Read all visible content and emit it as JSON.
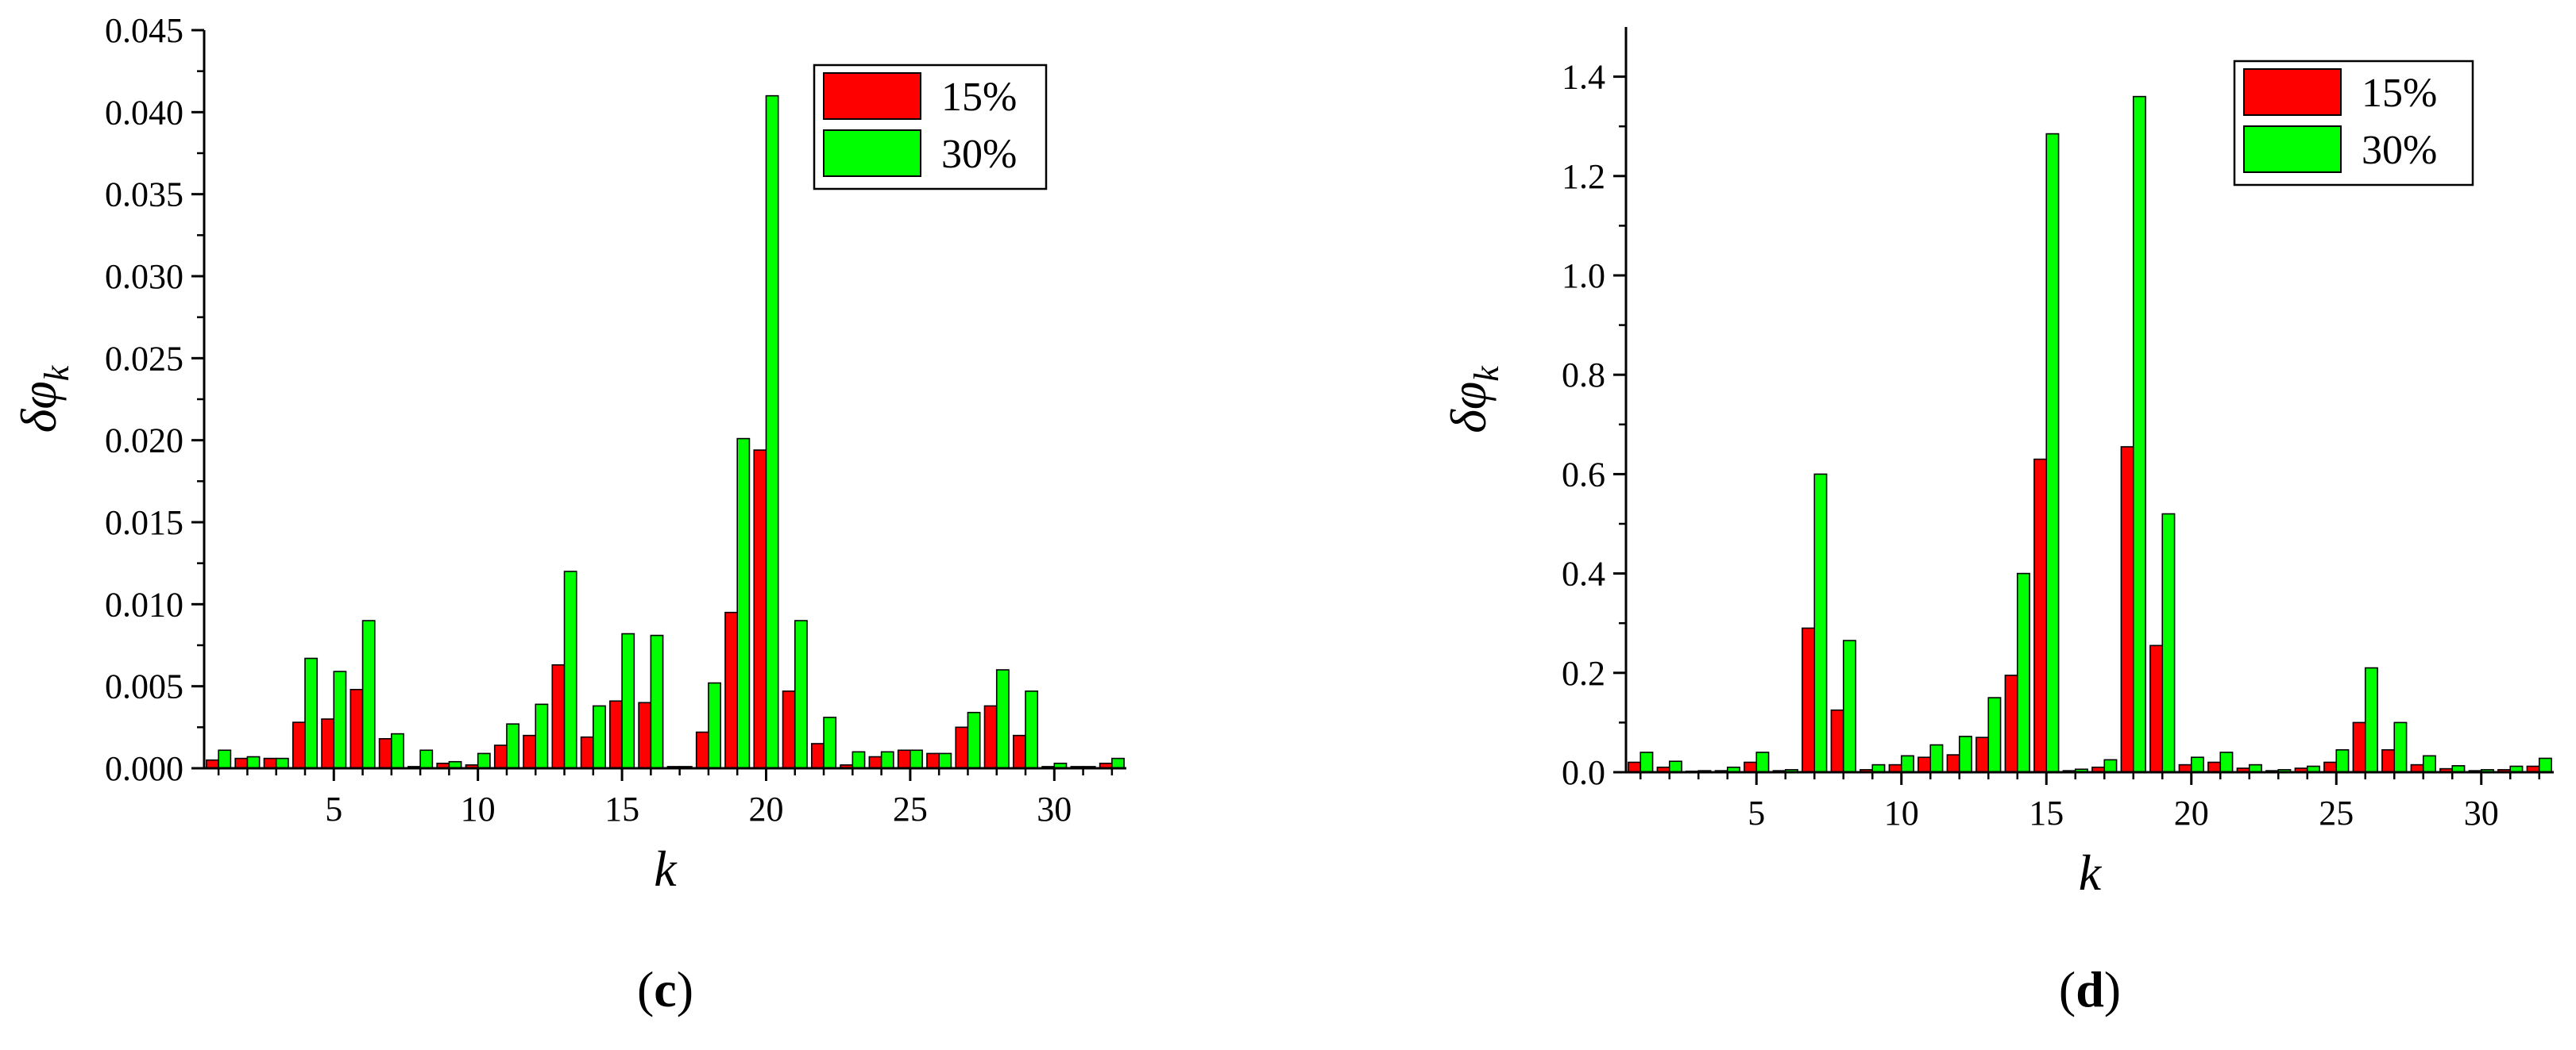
{
  "chart_data": [
    {
      "type": "bar",
      "panel_label": "c",
      "xlabel": "k",
      "ylabel_main": "δφ",
      "ylabel_sub": "k",
      "x": [
        1,
        2,
        3,
        4,
        5,
        6,
        7,
        8,
        9,
        10,
        11,
        12,
        13,
        14,
        15,
        16,
        17,
        18,
        19,
        20,
        21,
        22,
        23,
        24,
        25,
        26,
        27,
        28,
        29,
        30,
        31,
        32
      ],
      "xlim": [
        0.5,
        32.5
      ],
      "ylim": [
        0,
        0.045
      ],
      "x_ticks": [
        5,
        10,
        15,
        20,
        25,
        30
      ],
      "y_ticks": [
        0,
        0.005,
        0.01,
        0.015,
        0.02,
        0.025,
        0.03,
        0.035,
        0.04,
        0.045
      ],
      "y_tick_labels": [
        "0.000",
        "0.005",
        "0.010",
        "0.015",
        "0.020",
        "0.025",
        "0.030",
        "0.035",
        "0.040",
        "0.045"
      ],
      "legend_position": "top-right",
      "series": [
        {
          "name": "15%",
          "color": "#ff0000",
          "values": [
            0.0005,
            0.0006,
            0.0006,
            0.0028,
            0.003,
            0.0048,
            0.0018,
            0.0001,
            0.0003,
            0.0002,
            0.0014,
            0.002,
            0.0063,
            0.0019,
            0.0041,
            0.004,
            0.0001,
            0.0022,
            0.0095,
            0.0194,
            0.0047,
            0.0015,
            0.0002,
            0.0007,
            0.0011,
            0.0009,
            0.0025,
            0.0038,
            0.002,
            0.0001,
            0.0001,
            0.0003
          ]
        },
        {
          "name": "30%",
          "color": "#00ff00",
          "values": [
            0.0011,
            0.0007,
            0.0006,
            0.0067,
            0.0059,
            0.009,
            0.0021,
            0.0011,
            0.0004,
            0.0009,
            0.0027,
            0.0039,
            0.012,
            0.0038,
            0.0082,
            0.0081,
            0.0001,
            0.0052,
            0.0201,
            0.041,
            0.009,
            0.0031,
            0.001,
            0.001,
            0.0011,
            0.0009,
            0.0034,
            0.006,
            0.0047,
            0.0003,
            0.0001,
            0.0006
          ]
        }
      ]
    },
    {
      "type": "bar",
      "panel_label": "d",
      "xlabel": "k",
      "ylabel_main": "δφ",
      "ylabel_sub": "k",
      "x": [
        1,
        2,
        3,
        4,
        5,
        6,
        7,
        8,
        9,
        10,
        11,
        12,
        13,
        14,
        15,
        16,
        17,
        18,
        19,
        20,
        21,
        22,
        23,
        24,
        25,
        26,
        27,
        28,
        29,
        30,
        31,
        32
      ],
      "xlim": [
        0.5,
        32.5
      ],
      "ylim": [
        0,
        1.5
      ],
      "x_ticks": [
        5,
        10,
        15,
        20,
        25,
        30
      ],
      "y_ticks": [
        0,
        0.2,
        0.4,
        0.6,
        0.8,
        1.0,
        1.2,
        1.4
      ],
      "y_tick_labels": [
        "0.0",
        "0.2",
        "0.4",
        "0.6",
        "0.8",
        "1.0",
        "1.2",
        "1.4"
      ],
      "legend_position": "top-right",
      "series": [
        {
          "name": "15%",
          "color": "#ff0000",
          "values": [
            0.02,
            0.01,
            0.002,
            0.003,
            0.02,
            0.003,
            0.29,
            0.125,
            0.005,
            0.015,
            0.03,
            0.035,
            0.07,
            0.195,
            0.63,
            0.003,
            0.01,
            0.655,
            0.255,
            0.015,
            0.02,
            0.008,
            0.003,
            0.008,
            0.02,
            0.1,
            0.045,
            0.015,
            0.007,
            0.003,
            0.005,
            0.012
          ]
        },
        {
          "name": "30%",
          "color": "#00ff00",
          "values": [
            0.04,
            0.022,
            0.003,
            0.01,
            0.04,
            0.005,
            0.6,
            0.265,
            0.015,
            0.033,
            0.055,
            0.072,
            0.15,
            0.4,
            1.285,
            0.006,
            0.025,
            1.36,
            0.52,
            0.03,
            0.04,
            0.015,
            0.005,
            0.012,
            0.045,
            0.21,
            0.1,
            0.033,
            0.013,
            0.005,
            0.012,
            0.028
          ]
        }
      ]
    }
  ]
}
